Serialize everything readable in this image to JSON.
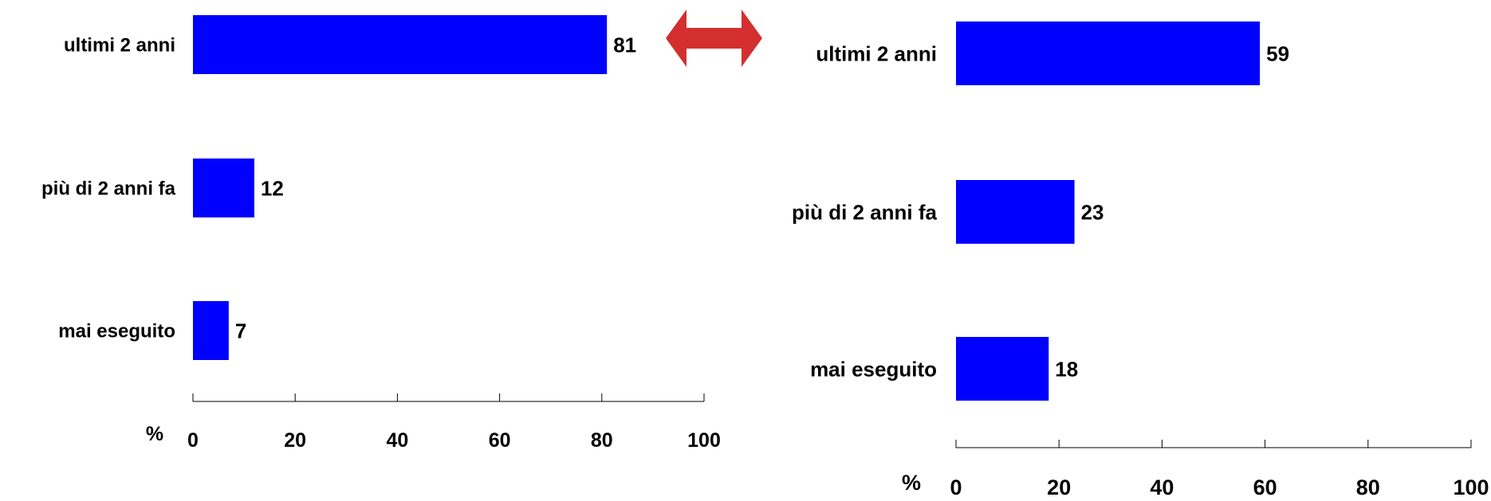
{
  "colors": {
    "bar": "#0000FF",
    "axis": "#000000",
    "arrow": "#D32F2F"
  },
  "chart_data": [
    {
      "type": "bar",
      "orientation": "horizontal",
      "categories": [
        "ultimi 2 anni",
        "più di 2 anni fa",
        "mai eseguito"
      ],
      "values": [
        81,
        12,
        7
      ],
      "xlabel": "%",
      "xlim": [
        0,
        100
      ],
      "xticks": [
        0,
        20,
        40,
        60,
        80,
        100
      ],
      "grid": false,
      "legend": "none"
    },
    {
      "type": "bar",
      "orientation": "horizontal",
      "categories": [
        "ultimi 2 anni",
        "più di 2 anni fa",
        "mai eseguito"
      ],
      "values": [
        59,
        23,
        18
      ],
      "xlabel": "%",
      "xlim": [
        0,
        100
      ],
      "xticks": [
        0,
        20,
        40,
        60,
        80,
        100
      ],
      "grid": false,
      "legend": "none"
    }
  ],
  "connector": {
    "icon": "double-arrow-icon"
  }
}
